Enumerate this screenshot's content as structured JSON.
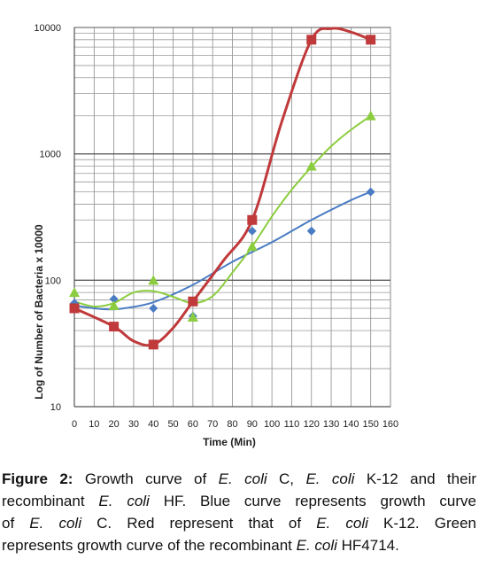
{
  "chart_data": {
    "type": "scatter",
    "xlabel": "Time (Min)",
    "ylabel": "Log of Number of Bacteria x 10000",
    "y_scale": "log",
    "xlim": [
      0,
      160
    ],
    "ylim": [
      10,
      10000
    ],
    "x_ticks": [
      "0",
      "10",
      "20",
      "30",
      "40",
      "50",
      "60",
      "70",
      "80",
      "90",
      "100",
      "110",
      "120",
      "130",
      "140",
      "150",
      "160"
    ],
    "y_ticks": [
      "10",
      "100",
      "1000",
      "10000"
    ],
    "grid": true,
    "legend": "none",
    "series": [
      {
        "color": "#4a7cc4",
        "marker": "diamond",
        "trend": "exponential",
        "x": [
          0,
          20,
          40,
          60,
          90,
          120,
          150
        ],
        "y": [
          66,
          71,
          60,
          52,
          245,
          245,
          500
        ],
        "curve_x": [
          0,
          15,
          25,
          40,
          60,
          80,
          100,
          120,
          140,
          150
        ],
        "curve_y": [
          63,
          59,
          60,
          67,
          92,
          140,
          200,
          300,
          430,
          500
        ]
      },
      {
        "color": "#c0393b",
        "marker": "square",
        "trend": "smooth",
        "x": [
          0,
          20,
          40,
          60,
          90,
          120,
          150
        ],
        "y": [
          60,
          43,
          31,
          68,
          300,
          8000,
          8000
        ],
        "curve_x": [
          0,
          20,
          30,
          40,
          50,
          60,
          75,
          90,
          105,
          120,
          130,
          140,
          150
        ],
        "curve_y": [
          60,
          43,
          33,
          31,
          42,
          68,
          140,
          300,
          1800,
          8000,
          9800,
          9200,
          8000
        ]
      },
      {
        "color": "#8ccd3f",
        "marker": "triangle",
        "trend": "smooth",
        "x": [
          0,
          20,
          40,
          60,
          90,
          120,
          150
        ],
        "y": [
          80,
          63,
          100,
          51,
          185,
          800,
          2000
        ],
        "curve_x": [
          0,
          10,
          20,
          30,
          40,
          50,
          60,
          70,
          80,
          90,
          100,
          110,
          120,
          130,
          140,
          150
        ],
        "curve_y": [
          68,
          62,
          66,
          80,
          82,
          74,
          66,
          75,
          115,
          185,
          320,
          520,
          790,
          1150,
          1550,
          2000
        ]
      }
    ]
  },
  "caption": {
    "label": "Figure 2:",
    "line1_a": " Growth curve of ",
    "line1_b": "E. coli",
    "line1_c": " C, ",
    "line1_d": "E. coli",
    "line1_e": " K-12 and their",
    "line2_a": "recombinant ",
    "line2_b": "E. coli",
    "line2_c": " HF. Blue curve represents growth curve",
    "line3_a": "of ",
    "line3_b": "E. coli",
    "line3_c": " C. Red represent that of ",
    "line3_d": "E. coli",
    "line3_e": " K-12. Green",
    "line4_a": "represents growth curve of the recombinant ",
    "line4_b": "E. coli",
    "line4_c": " HF4714."
  }
}
